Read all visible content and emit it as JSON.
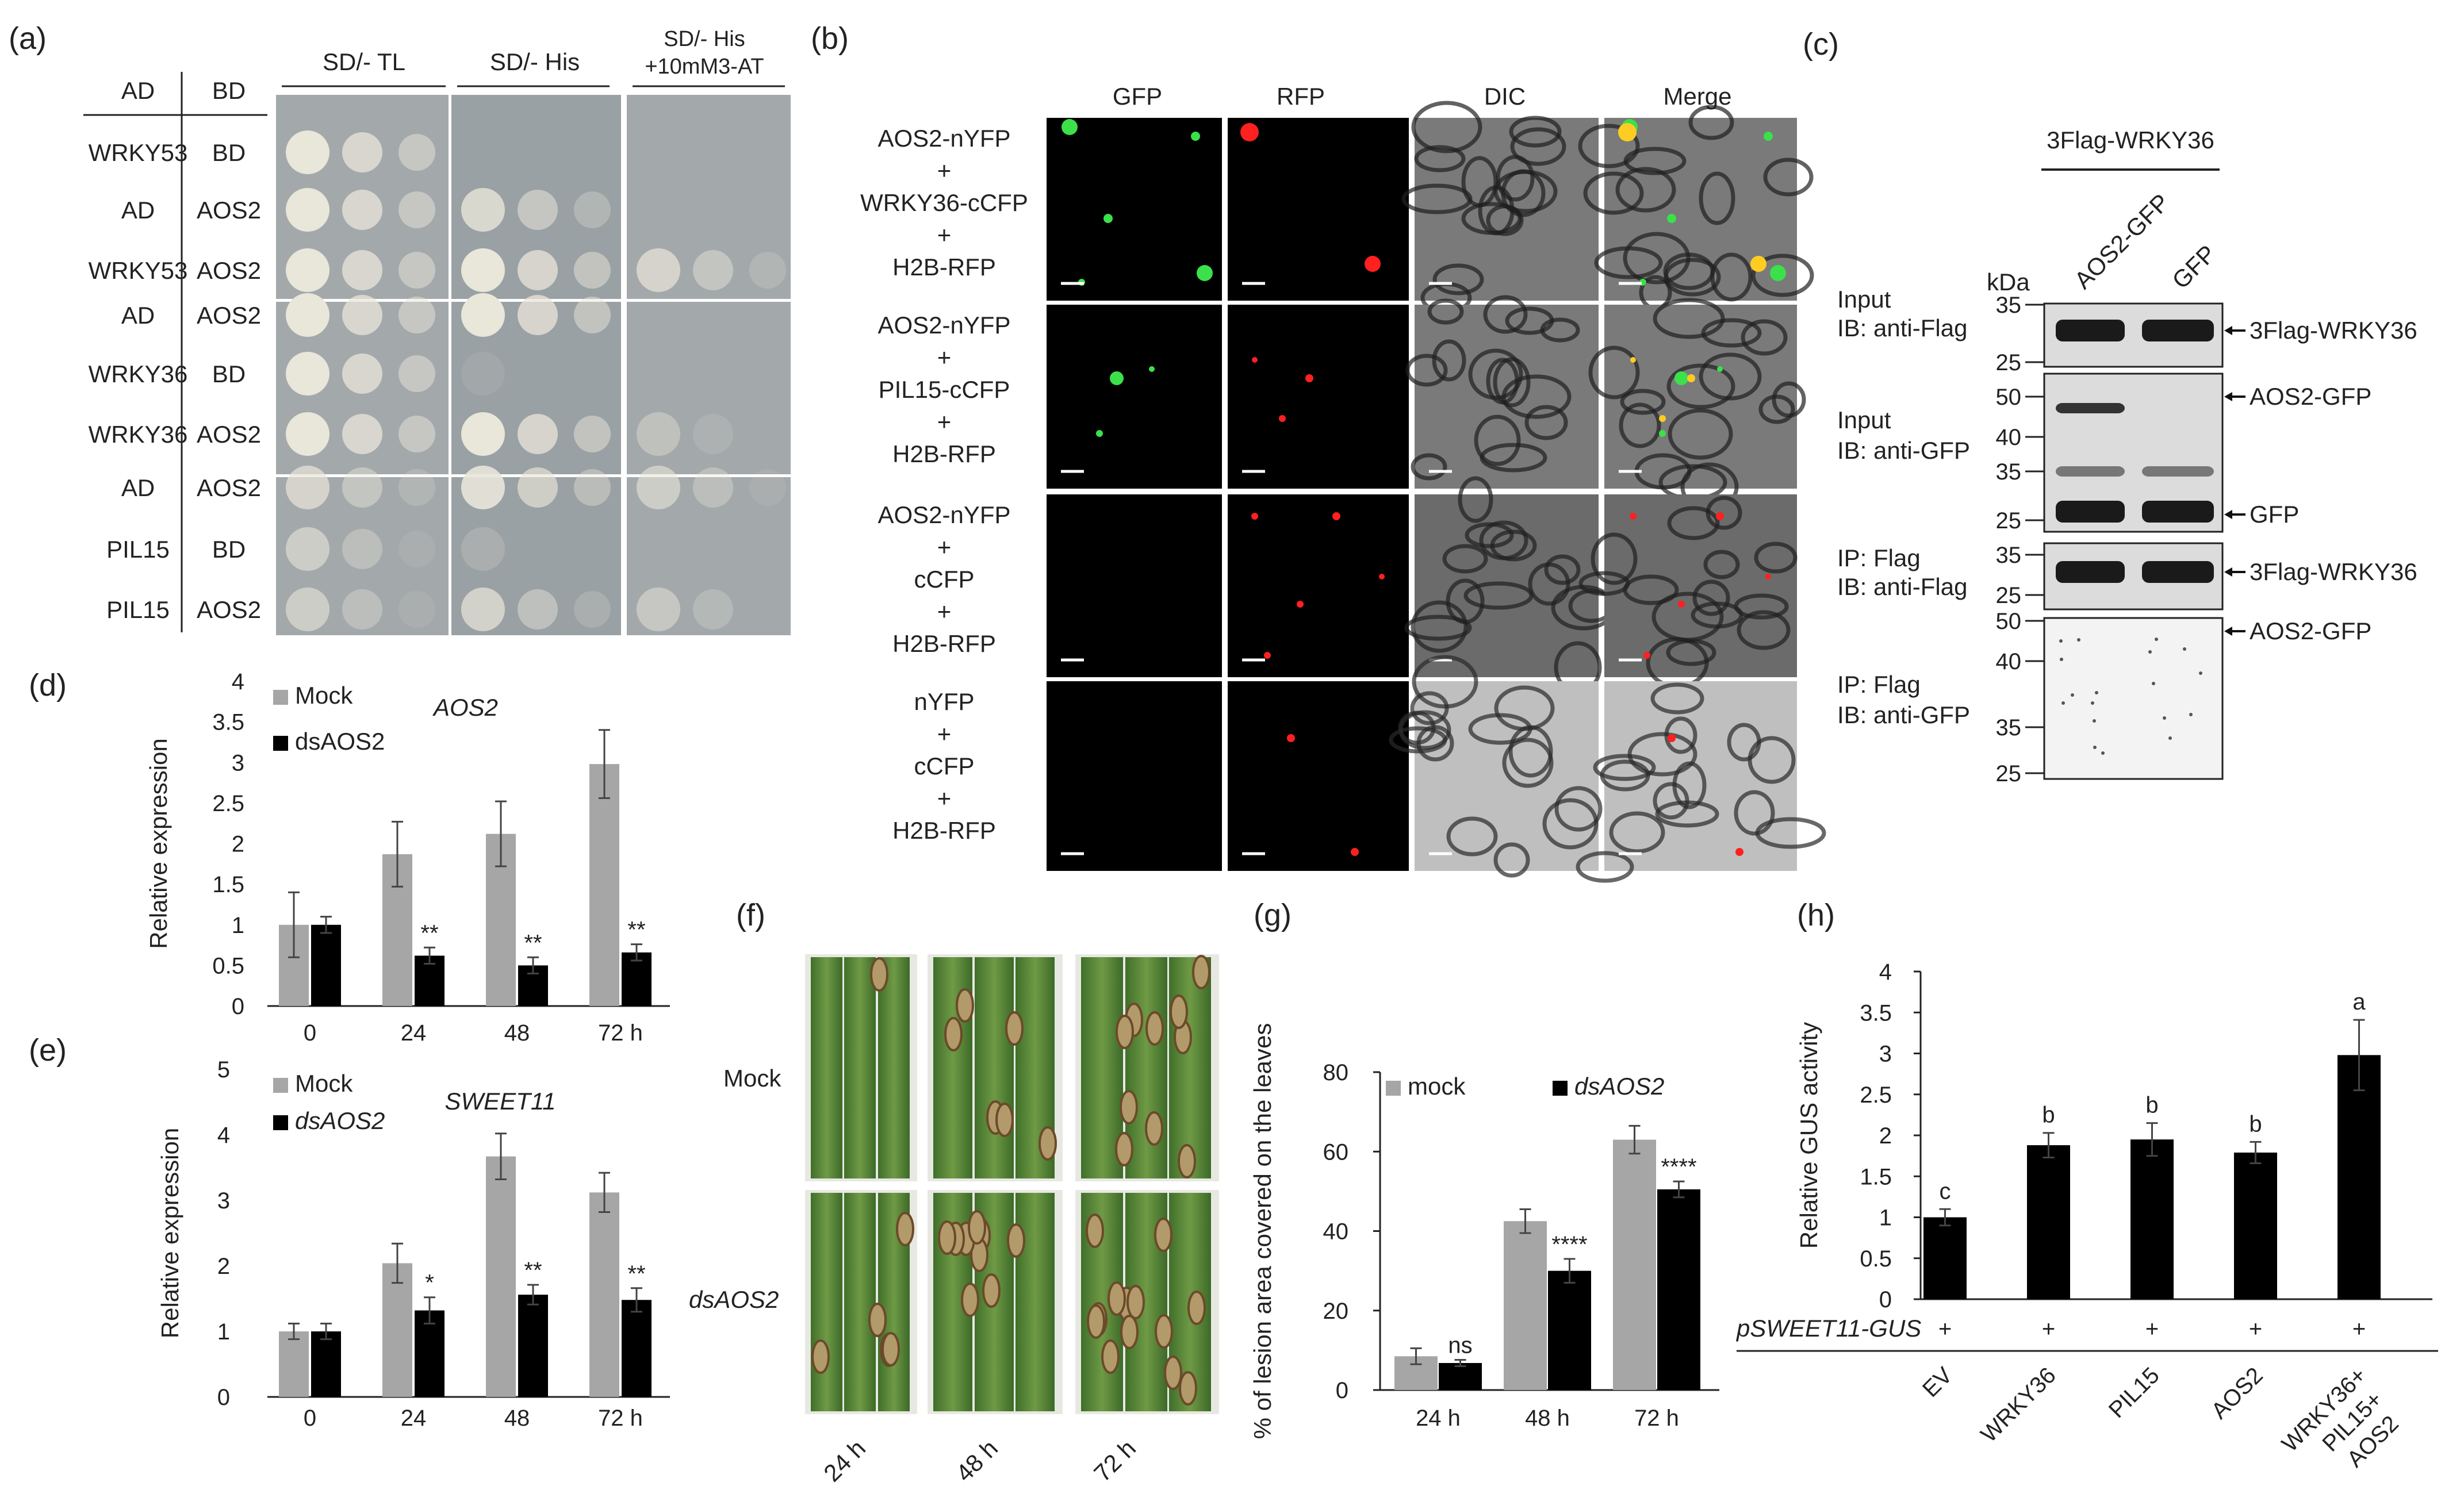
{
  "panel_labels": [
    "(a)",
    "(b)",
    "(c)",
    "(d)",
    "(e)",
    "(f)",
    "(g)",
    "(h)"
  ],
  "a": {
    "col_ad": "AD",
    "col_bd": "BD",
    "conditions": [
      "SD/- TL",
      "SD/- His",
      "SD/- His",
      "+10mM3-AT"
    ],
    "rows": [
      {
        "ad": "WRKY53",
        "bd": "BD"
      },
      {
        "ad": "AD",
        "bd": "AOS2"
      },
      {
        "ad": "WRKY53",
        "bd": "AOS2"
      },
      {
        "ad": "AD",
        "bd": "AOS2"
      },
      {
        "ad": "WRKY36",
        "bd": "BD"
      },
      {
        "ad": "WRKY36",
        "bd": "AOS2"
      },
      {
        "ad": "AD",
        "bd": "AOS2"
      },
      {
        "ad": "PIL15",
        "bd": "BD"
      },
      {
        "ad": "PIL15",
        "bd": "AOS2"
      }
    ]
  },
  "b": {
    "channels": [
      "GFP",
      "RFP",
      "DIC",
      "Merge"
    ],
    "rows": [
      [
        "AOS2-nYFP",
        "+",
        "WRKY36-cCFP",
        "+",
        "H2B-RFP"
      ],
      [
        "AOS2-nYFP",
        "+",
        "PIL15-cCFP",
        "+",
        "H2B-RFP"
      ],
      [
        "AOS2-nYFP",
        "+",
        "cCFP",
        "+",
        "H2B-RFP"
      ],
      [
        "nYFP",
        "+",
        "cCFP",
        "+",
        "H2B-RFP"
      ]
    ]
  },
  "c": {
    "title": "3Flag-WRKY36",
    "lanes": [
      "AOS2-GFP",
      "GFP"
    ],
    "kda": "kDa",
    "blots": [
      {
        "l1": "Input",
        "l2": "IB: anti-Flag",
        "markers": [
          "35",
          "25"
        ],
        "bands": [
          "3Flag-WRKY36"
        ]
      },
      {
        "l1": "Input",
        "l2": "IB: anti-GFP",
        "markers": [
          "50",
          "40",
          "35",
          "25"
        ],
        "bands": [
          "AOS2-GFP",
          "GFP"
        ]
      },
      {
        "l1": "IP: Flag",
        "l2": "IB: anti-Flag",
        "markers": [
          "35",
          "25"
        ],
        "bands": [
          "3Flag-WRKY36"
        ]
      },
      {
        "l1": "IP: Flag",
        "l2": "IB: anti-GFP",
        "markers": [
          "50",
          "40",
          "35",
          "25"
        ],
        "bands": [
          "AOS2-GFP"
        ]
      }
    ]
  },
  "f": {
    "rows": [
      "Mock",
      "dsAOS2"
    ],
    "times": [
      "24 h",
      "48 h",
      "72 h"
    ]
  },
  "chart_data": [
    {
      "id": "d",
      "type": "bar",
      "title": "AOS2",
      "ylabel": "Relative expression",
      "ylim": [
        0,
        4
      ],
      "yticks": [
        "0",
        "0.5",
        "1",
        "1.5",
        "2",
        "2.5",
        "3",
        "3.5",
        "4"
      ],
      "categories": [
        "0",
        "24",
        "48",
        "72 h"
      ],
      "series": [
        {
          "name": "Mock",
          "color": "#a6a6a6",
          "values": [
            1.0,
            1.87,
            2.12,
            2.98
          ],
          "errors": [
            0.4,
            0.4,
            0.4,
            0.42
          ]
        },
        {
          "name": "dsAOS2",
          "color": "#000000",
          "values": [
            1.0,
            0.62,
            0.5,
            0.66
          ],
          "errors": [
            0.1,
            0.1,
            0.1,
            0.1
          ]
        }
      ],
      "annotations": [
        "",
        "**",
        "**",
        "**"
      ]
    },
    {
      "id": "e",
      "type": "bar",
      "title": "SWEET11",
      "ylabel": "Relative expression",
      "ylim": [
        0,
        5
      ],
      "yticks": [
        "0",
        "1",
        "2",
        "3",
        "4",
        "5"
      ],
      "categories": [
        "0",
        "24",
        "48",
        "72 h"
      ],
      "series": [
        {
          "name": "Mock",
          "color": "#a6a6a6",
          "values": [
            1.0,
            2.04,
            3.67,
            3.12
          ],
          "errors": [
            0.12,
            0.3,
            0.35,
            0.3
          ]
        },
        {
          "name": "dsAOS2",
          "color": "#000000",
          "values": [
            1.0,
            1.32,
            1.56,
            1.48
          ],
          "errors": [
            0.12,
            0.2,
            0.15,
            0.18
          ]
        }
      ],
      "annotations": [
        "",
        "*",
        "**",
        "**"
      ]
    },
    {
      "id": "g",
      "type": "bar",
      "title": "",
      "ylabel": "% of lesion area covered on the leaves",
      "ylim": [
        0,
        80
      ],
      "yticks": [
        "0",
        "20",
        "40",
        "60",
        "80"
      ],
      "categories": [
        "24 h",
        "48 h",
        "72 h"
      ],
      "series": [
        {
          "name": "mock",
          "color": "#a6a6a6",
          "values": [
            8.5,
            42.5,
            63
          ],
          "errors": [
            2,
            3,
            3.5
          ]
        },
        {
          "name": "dsAOS2",
          "color": "#000000",
          "values": [
            6.8,
            30,
            50.5
          ],
          "errors": [
            0.8,
            3,
            2
          ]
        }
      ],
      "annotations": [
        "ns",
        "****",
        "****"
      ]
    },
    {
      "id": "h",
      "type": "bar",
      "title": "",
      "ylabel": "Relative GUS activity",
      "ylim": [
        0,
        4
      ],
      "yticks": [
        "0",
        "0.5",
        "1",
        "1.5",
        "2",
        "2.5",
        "3",
        "3.5",
        "4"
      ],
      "categories": [
        "EV",
        "WRKY36",
        "PIL15",
        "AOS2",
        "WRKY36+ PIL15+ AOS2"
      ],
      "series": [
        {
          "name": "",
          "color": "#000000",
          "values": [
            1.0,
            1.88,
            1.95,
            1.79,
            2.98
          ],
          "errors": [
            0.1,
            0.15,
            0.2,
            0.13,
            0.43
          ]
        }
      ],
      "letters": [
        "c",
        "b",
        "b",
        "b",
        "a"
      ],
      "row_label": "pSWEET11-GUS",
      "row_marks": [
        "+",
        "+",
        "+",
        "+",
        "+"
      ]
    }
  ]
}
